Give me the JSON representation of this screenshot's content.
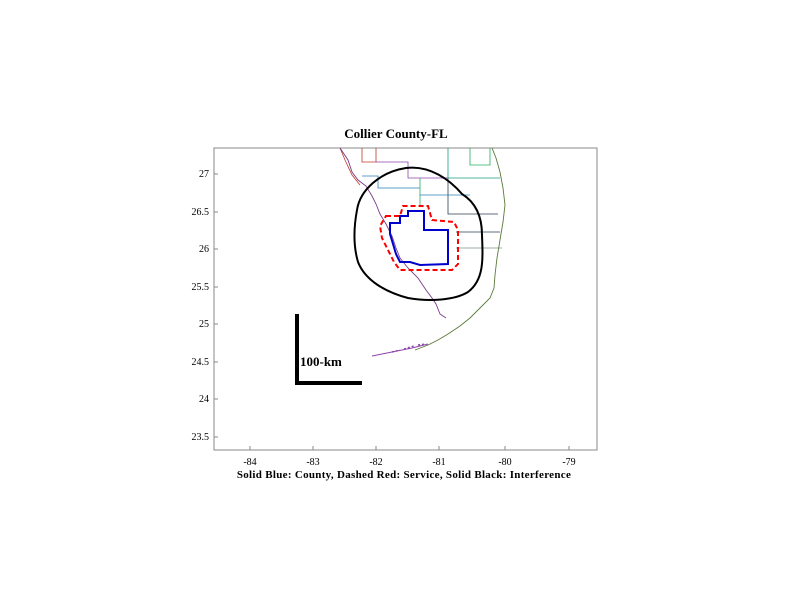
{
  "title": "Collier County-FL",
  "caption": "Solid Blue: County, Dashed Red: Service, Solid Black: Interference",
  "scale_bar": {
    "label": "100-km",
    "length_km": 100
  },
  "axes": {
    "x_ticks": [
      "-84",
      "-83",
      "-82",
      "-81",
      "-80",
      "-79"
    ],
    "y_ticks": [
      "27",
      "26.5",
      "26",
      "25.5",
      "25",
      "24.5",
      "24",
      "23.5"
    ],
    "xlim": [
      -84.6,
      -78.6
    ],
    "ylim": [
      23.35,
      27.35
    ]
  },
  "legend_colors": {
    "county": "#0000cc",
    "service": "#ff0000",
    "interference": "#000000"
  }
}
